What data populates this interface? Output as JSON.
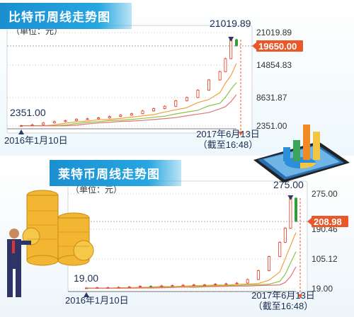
{
  "chart_data": [
    {
      "type": "line",
      "title": "比特币周线走势图",
      "unit": "（单位：元）",
      "x_start": "2016年1月10日",
      "x_end": "2017年6月13日",
      "x_end_note": "（截至16:48）",
      "yticks": [
        2351.0,
        8631.87,
        14854.83,
        21019.89
      ],
      "ytick_labels": [
        "2351.00",
        "8631.87",
        "14854.83",
        "21019.89"
      ],
      "ylim": [
        2351.0,
        21019.89
      ],
      "low_label": "2351.00",
      "high_label": "21019.89",
      "current_value": 19650.0,
      "current_label": "19650.00",
      "x": [
        0,
        4,
        8,
        12,
        16,
        20,
        24,
        28,
        32,
        36,
        40,
        44,
        48,
        52,
        56,
        60,
        64,
        68,
        72,
        74,
        76,
        78
      ],
      "values": [
        2400,
        2600,
        3000,
        3300,
        3500,
        3800,
        3900,
        4100,
        4400,
        4700,
        5000,
        5600,
        6100,
        6600,
        7800,
        8500,
        10100,
        12300,
        14100,
        16900,
        21019.89,
        19650.0
      ]
    },
    {
      "type": "line",
      "title": "莱特币周线走势图",
      "unit": "（单位：元）",
      "x_start": "2016年1月10日",
      "x_end": "2017年6月13日",
      "x_end_note": "（截至16:48）",
      "yticks": [
        19.0,
        105.12,
        190.46,
        275.0
      ],
      "ytick_labels": [
        "19.00",
        "105.12",
        "190.46",
        "275.00"
      ],
      "ylim": [
        19.0,
        275.0
      ],
      "low_label": "19.00",
      "high_label": "275.00",
      "current_value": 208.98,
      "current_label": "208.98",
      "x": [
        0,
        4,
        8,
        12,
        16,
        20,
        24,
        28,
        32,
        36,
        40,
        44,
        48,
        52,
        56,
        60,
        64,
        68,
        72,
        74,
        76,
        78
      ],
      "values": [
        21,
        22,
        22,
        23,
        24,
        26,
        25,
        27,
        28,
        29,
        30,
        30,
        32,
        33,
        35,
        45,
        70,
        110,
        150,
        190,
        275.0,
        208.98
      ]
    }
  ],
  "colors": {
    "title_bg": "#1a8fd0",
    "up": "#e03a1e",
    "down": "#2e9e3a",
    "ma1": "#f2a03c",
    "ma2": "#8bc34a",
    "ma3": "#e57373",
    "current_bg": "#e8582a",
    "axis_text": "#333333",
    "dash": "#e8582a"
  }
}
